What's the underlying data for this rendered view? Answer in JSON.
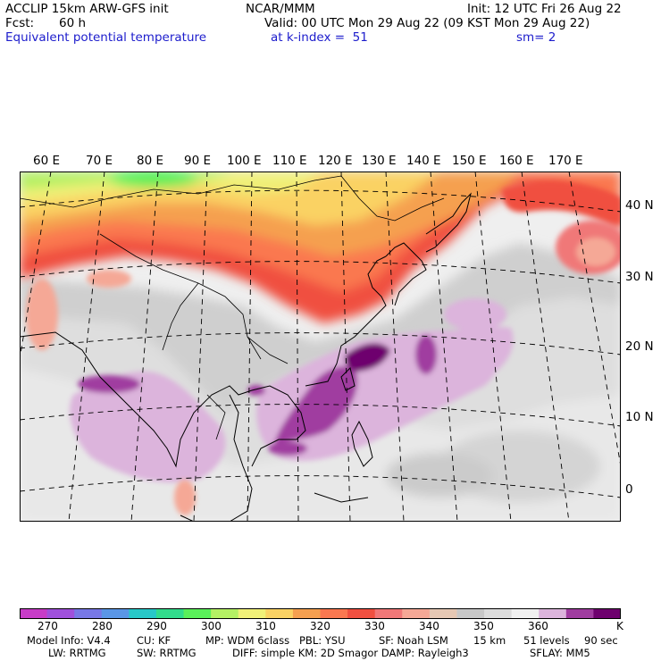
{
  "header": {
    "model_title": "ACCLIP 15km ARW-GFS init",
    "institution": "NCAR/MMM",
    "init_time": "Init: 12 UTC Fri 26 Aug 22",
    "forecast_label": "Fcst:",
    "forecast_hours": "60 h",
    "valid_time": "Valid: 00 UTC Mon 29 Aug 22 (09 KST Mon 29 Aug 22)",
    "field_name": "Equivalent potential temperature",
    "level": "at k-index =  51",
    "smoothing": "sm= 2"
  },
  "map": {
    "lon_labels": [
      "60 E",
      "70 E",
      "80 E",
      "90 E",
      "100 E",
      "110 E",
      "120 E",
      "130 E",
      "140 E",
      "150 E",
      "160 E",
      "170 E"
    ],
    "lat_labels": [
      "40 N",
      "30 N",
      "20 N",
      "10 N",
      "0"
    ]
  },
  "colorbar": {
    "unit": "K",
    "tick_labels": [
      "270",
      "280",
      "290",
      "300",
      "310",
      "320",
      "330",
      "340",
      "350",
      "360"
    ],
    "colors": [
      "#c83cc8",
      "#a050dc",
      "#7878e6",
      "#5a96e6",
      "#28c8c8",
      "#32dc8c",
      "#5af05a",
      "#b4f064",
      "#f0f078",
      "#fad264",
      "#f5a050",
      "#fa7850",
      "#f05040",
      "#f07878",
      "#f5a896",
      "#e6c8b4",
      "#c8c8c8",
      "#dcdcdc",
      "#f0f0f0",
      "#dcb4dc",
      "#a03ca0",
      "#6e006e"
    ]
  },
  "footer": {
    "line1": [
      {
        "label": "Model Info: V4.4"
      },
      {
        "label": "CU: KF"
      },
      {
        "label": "MP: WDM 6class"
      },
      {
        "label": "PBL: YSU"
      },
      {
        "label": "SF: Noah LSM"
      },
      {
        "label": "15 km"
      },
      {
        "label": "51 levels"
      },
      {
        "label": "90 sec"
      }
    ],
    "line2": [
      {
        "label": "LW: RRTMG"
      },
      {
        "label": "SW: RRTMG"
      },
      {
        "label": "DIFF: simple KM: 2D Smagor DAMP: Rayleigh3"
      },
      {
        "label": "SFLAY: MM5"
      }
    ]
  }
}
